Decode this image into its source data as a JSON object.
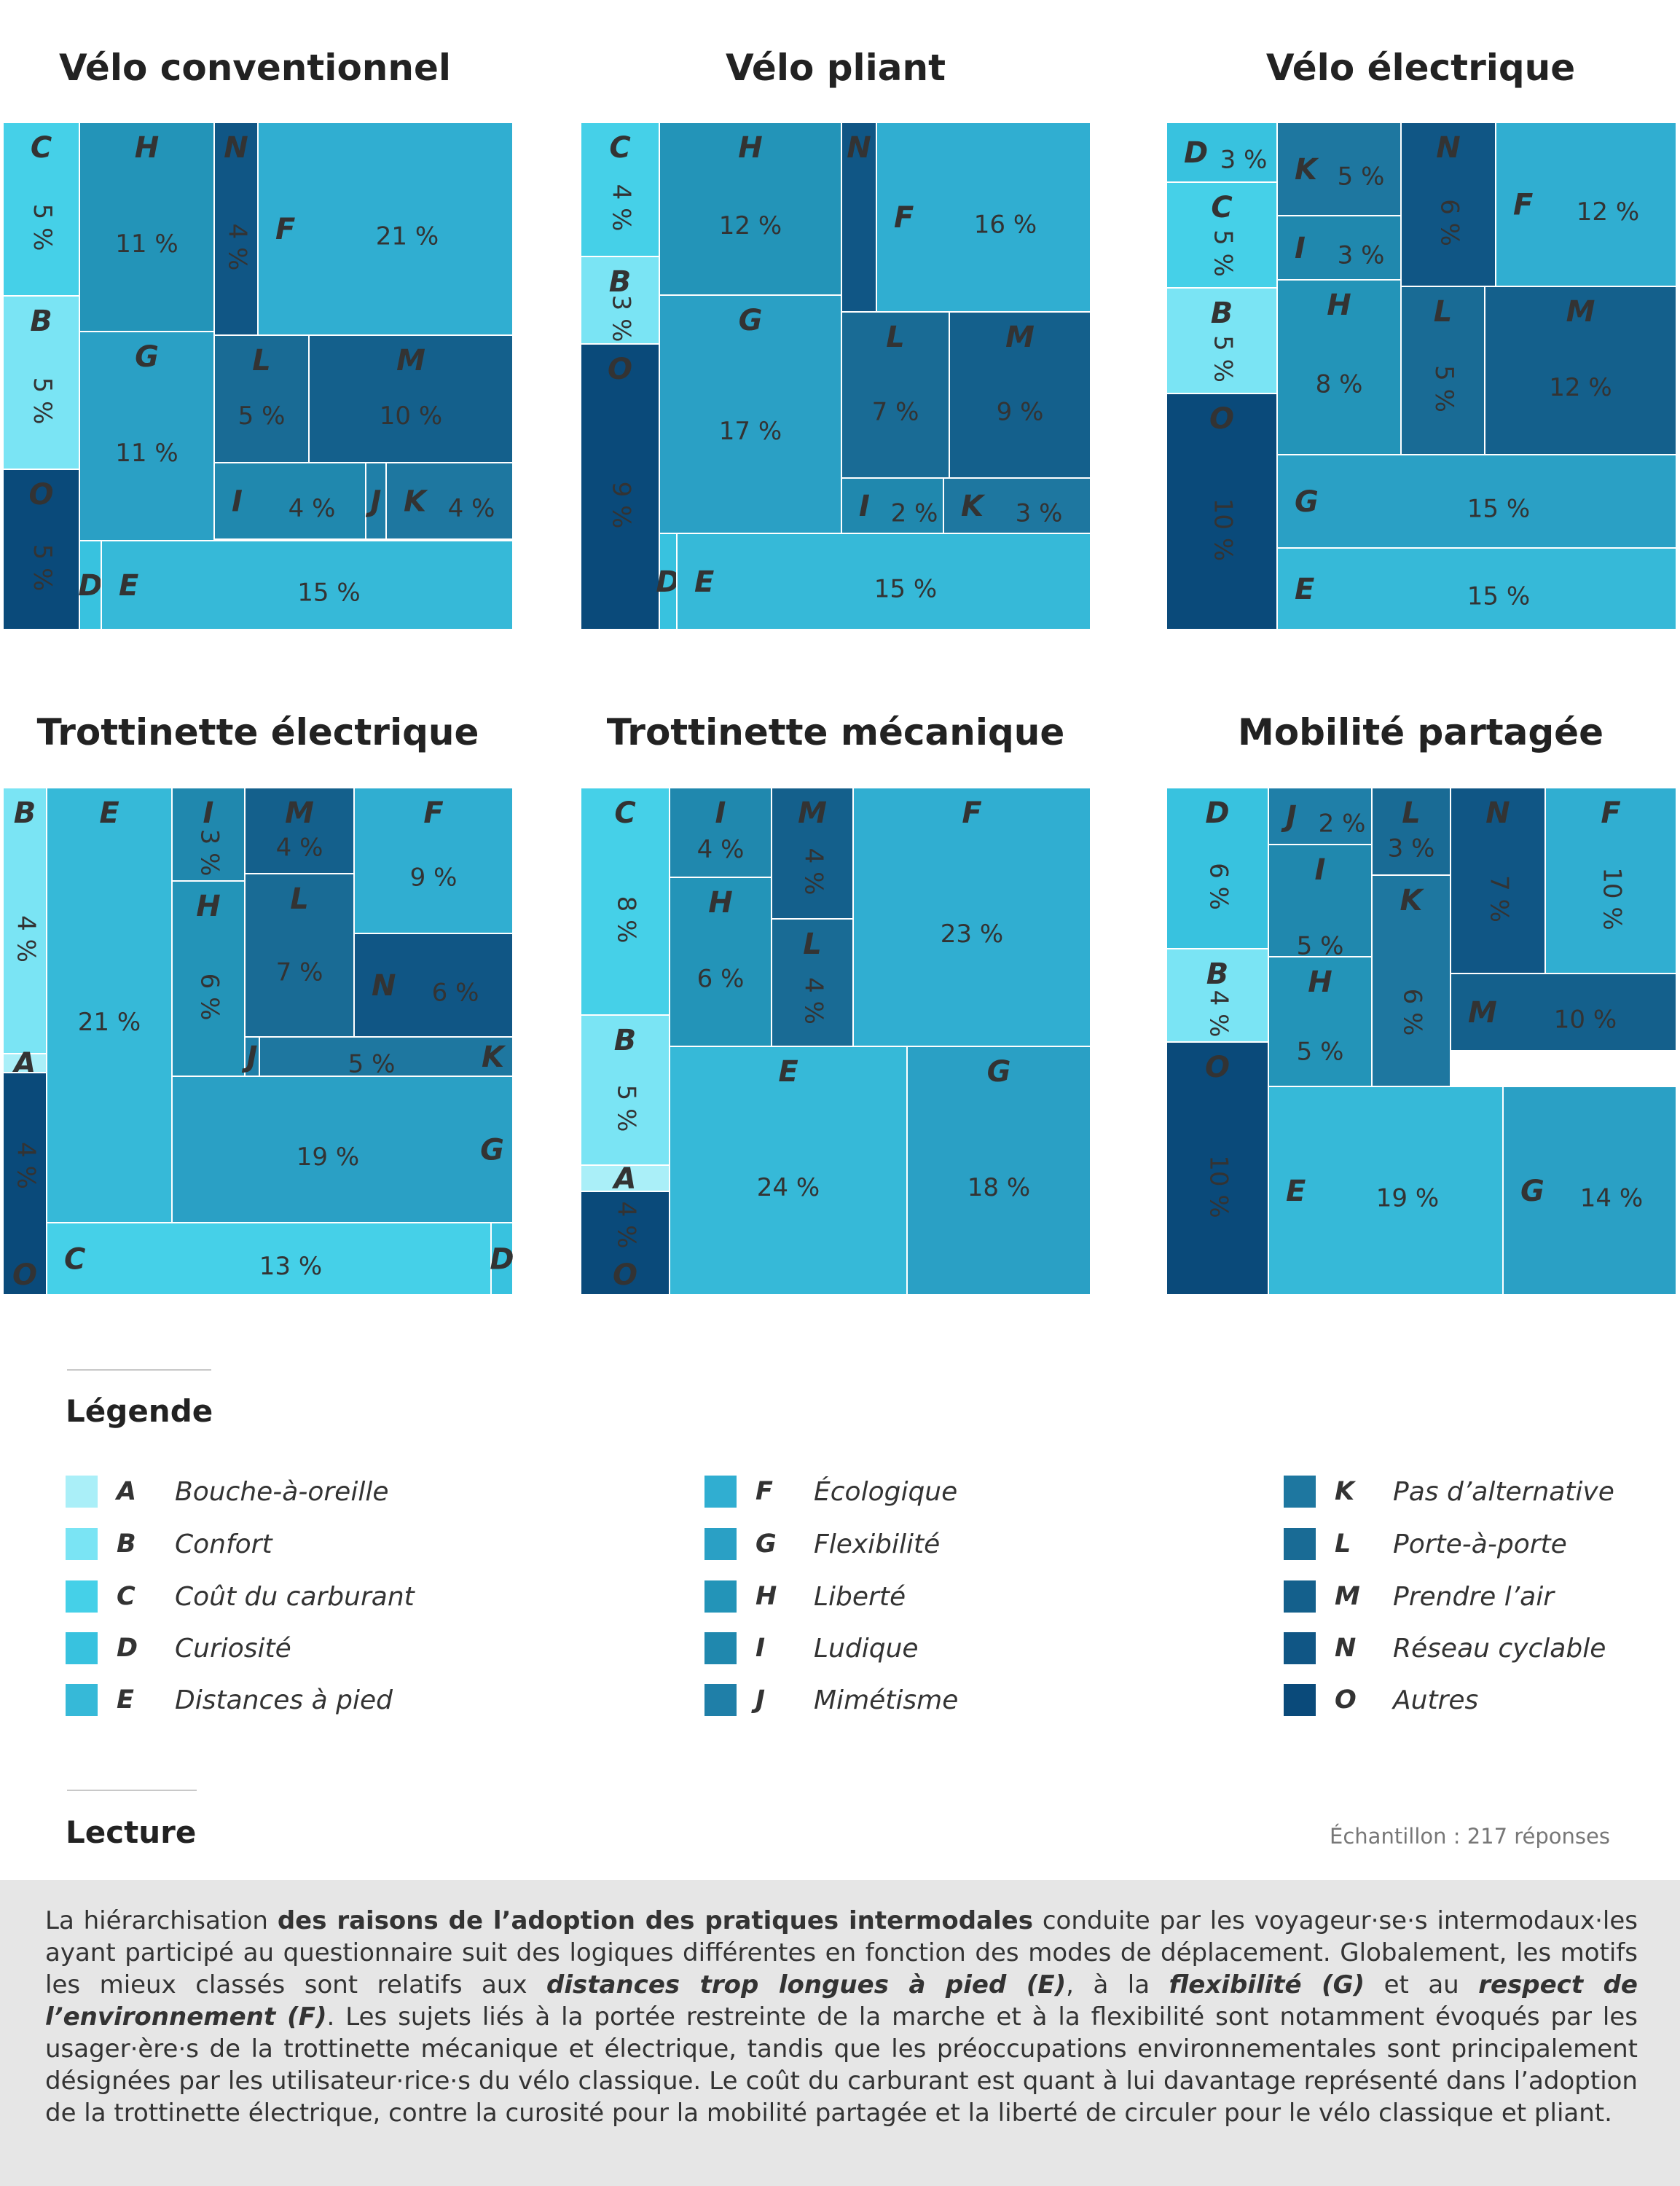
{
  "legend_title": "Légende",
  "reading_title": "Lecture",
  "sample_text": "Échantillon : 217 réponses",
  "colors": {
    "A": "#aaeff8",
    "B": "#7ae4f4",
    "C": "#45d0e8",
    "D": "#38c2df",
    "E": "#36b9d8",
    "F": "#30aed1",
    "G": "#2aa0c5",
    "H": "#2394b8",
    "I": "#2088ae",
    "J": "#1f7fa8",
    "K": "#1e77a0",
    "L": "#196b95",
    "M": "#14608c",
    "N": "#105685",
    "O": "#0a4a7a"
  },
  "legend": [
    {
      "letter": "A",
      "label": "Bouche-à-oreille"
    },
    {
      "letter": "B",
      "label": "Confort"
    },
    {
      "letter": "C",
      "label": "Coût du carburant"
    },
    {
      "letter": "D",
      "label": "Curiosité"
    },
    {
      "letter": "E",
      "label": "Distances à pied"
    },
    {
      "letter": "F",
      "label": "Écologique"
    },
    {
      "letter": "G",
      "label": "Flexibilité"
    },
    {
      "letter": "H",
      "label": "Liberté"
    },
    {
      "letter": "I",
      "label": "Ludique"
    },
    {
      "letter": "J",
      "label": "Mimétisme"
    },
    {
      "letter": "K",
      "label": "Pas d’alternative"
    },
    {
      "letter": "L",
      "label": "Porte-à-porte"
    },
    {
      "letter": "M",
      "label": "Prendre l’air"
    },
    {
      "letter": "N",
      "label": "Réseau cyclable"
    },
    {
      "letter": "O",
      "label": "Autres"
    }
  ],
  "reading": {
    "t1": "La hiérarchisation ",
    "b1": "des raisons de l’adoption des pratiques intermodales",
    "t2": " conduite par les voyageur·se·s intermodaux·les ayant participé au questionnaire suit des logiques différentes en fonction des modes de déplacement. Globalement, les motifs les mieux classés sont relatifs aux ",
    "b2": "distances trop longues à pied (E)",
    "t3": ", à la ",
    "b3": "flexibilité (G)",
    "t4": " et au ",
    "b4": "respect de l’environnement (F)",
    "t5": ". Les sujets liés à la portée restreinte de la marche et à la flexibilité sont notamment évoqués par les usager·ère·s de la trottinette mécanique et électrique, tandis que les préoccupations environnementales sont principalement désignées par les utilisateur·rice·s du vélo classique. Le coût du carburant est quant à lui davantage représenté dans l’adoption de la trottinette électrique, contre la curosité pour la mobilité partagée et la liberté de circuler pour le vélo classique et pliant."
  },
  "chart_data": [
    {
      "type": "treemap",
      "title": "Vélo conventionnel",
      "values": [
        {
          "letter": "C",
          "value": 5,
          "label": "5 %"
        },
        {
          "letter": "B",
          "value": 5,
          "label": "5 %"
        },
        {
          "letter": "O",
          "value": 5,
          "label": "5 %"
        },
        {
          "letter": "H",
          "value": 11,
          "label": "11 %"
        },
        {
          "letter": "G",
          "value": 11,
          "label": "11 %"
        },
        {
          "letter": "N",
          "value": 4,
          "label": "4 %"
        },
        {
          "letter": "F",
          "value": 21,
          "label": "21 %"
        },
        {
          "letter": "L",
          "value": 5,
          "label": "5 %"
        },
        {
          "letter": "M",
          "value": 10,
          "label": "10 %"
        },
        {
          "letter": "I",
          "value": 4,
          "label": "4 %"
        },
        {
          "letter": "J",
          "value": 1,
          "label": ""
        },
        {
          "letter": "K",
          "value": 4,
          "label": "4 %"
        },
        {
          "letter": "D",
          "value": 1,
          "label": ""
        },
        {
          "letter": "E",
          "value": 15,
          "label": "15 %"
        }
      ]
    },
    {
      "type": "treemap",
      "title": "Vélo pliant",
      "values": [
        {
          "letter": "C",
          "value": 4,
          "label": "4 %"
        },
        {
          "letter": "B",
          "value": 3,
          "label": "3 %"
        },
        {
          "letter": "O",
          "value": 9,
          "label": "9 %"
        },
        {
          "letter": "H",
          "value": 12,
          "label": "12 %"
        },
        {
          "letter": "N",
          "value": 2,
          "label": ""
        },
        {
          "letter": "F",
          "value": 16,
          "label": "16 %"
        },
        {
          "letter": "G",
          "value": 17,
          "label": "17 %"
        },
        {
          "letter": "L",
          "value": 7,
          "label": "7 %"
        },
        {
          "letter": "M",
          "value": 9,
          "label": "9 %"
        },
        {
          "letter": "I",
          "value": 2,
          "label": "2 %"
        },
        {
          "letter": "K",
          "value": 3,
          "label": "3 %"
        },
        {
          "letter": "D",
          "value": 1,
          "label": ""
        },
        {
          "letter": "E",
          "value": 15,
          "label": "15 %"
        }
      ]
    },
    {
      "type": "treemap",
      "title": "Vélo électrique",
      "values": [
        {
          "letter": "D",
          "value": 3,
          "label": "3 %"
        },
        {
          "letter": "C",
          "value": 5,
          "label": "5 %"
        },
        {
          "letter": "B",
          "value": 5,
          "label": "5 %"
        },
        {
          "letter": "O",
          "value": 10,
          "label": "10 %"
        },
        {
          "letter": "K",
          "value": 5,
          "label": "5 %"
        },
        {
          "letter": "I",
          "value": 3,
          "label": "3 %"
        },
        {
          "letter": "H",
          "value": 8,
          "label": "8 %"
        },
        {
          "letter": "N",
          "value": 6,
          "label": "6 %"
        },
        {
          "letter": "F",
          "value": 12,
          "label": "12 %"
        },
        {
          "letter": "L",
          "value": 5,
          "label": "5 %"
        },
        {
          "letter": "M",
          "value": 12,
          "label": "12 %"
        },
        {
          "letter": "G",
          "value": 15,
          "label": "15 %"
        },
        {
          "letter": "E",
          "value": 15,
          "label": "15 %"
        }
      ]
    },
    {
      "type": "treemap",
      "title": "Trottinette électrique",
      "values": [
        {
          "letter": "B",
          "value": 4,
          "label": "4 %"
        },
        {
          "letter": "A",
          "value": 1,
          "label": ""
        },
        {
          "letter": "O",
          "value": 4,
          "label": "4 %"
        },
        {
          "letter": "E",
          "value": 21,
          "label": "21 %"
        },
        {
          "letter": "I",
          "value": 3,
          "label": "3 %"
        },
        {
          "letter": "M",
          "value": 4,
          "label": "4 %"
        },
        {
          "letter": "F",
          "value": 9,
          "label": "9 %"
        },
        {
          "letter": "H",
          "value": 6,
          "label": "6 %"
        },
        {
          "letter": "L",
          "value": 7,
          "label": "7 %"
        },
        {
          "letter": "N",
          "value": 6,
          "label": "6 %"
        },
        {
          "letter": "J",
          "value": 1,
          "label": ""
        },
        {
          "letter": "K",
          "value": 5,
          "label": "5 %"
        },
        {
          "letter": "G",
          "value": 19,
          "label": "19 %"
        },
        {
          "letter": "C",
          "value": 13,
          "label": "13 %"
        },
        {
          "letter": "D",
          "value": 1,
          "label": ""
        }
      ]
    },
    {
      "type": "treemap",
      "title": "Trottinette mécanique",
      "values": [
        {
          "letter": "C",
          "value": 8,
          "label": "8 %"
        },
        {
          "letter": "B",
          "value": 5,
          "label": "5 %"
        },
        {
          "letter": "A",
          "value": 1,
          "label": ""
        },
        {
          "letter": "O",
          "value": 4,
          "label": "4 %"
        },
        {
          "letter": "I",
          "value": 4,
          "label": "4 %"
        },
        {
          "letter": "M",
          "value": 4,
          "label": "4 %"
        },
        {
          "letter": "H",
          "value": 6,
          "label": "6 %"
        },
        {
          "letter": "L",
          "value": 4,
          "label": "4 %"
        },
        {
          "letter": "F",
          "value": 23,
          "label": "23 %"
        },
        {
          "letter": "E",
          "value": 24,
          "label": "24 %"
        },
        {
          "letter": "G",
          "value": 18,
          "label": "18 %"
        }
      ]
    },
    {
      "type": "treemap",
      "title": "Mobilité partagée",
      "values": [
        {
          "letter": "D",
          "value": 6,
          "label": "6 %"
        },
        {
          "letter": "B",
          "value": 4,
          "label": "4 %"
        },
        {
          "letter": "O",
          "value": 10,
          "label": "10 %"
        },
        {
          "letter": "J",
          "value": 2,
          "label": "2 %"
        },
        {
          "letter": "I",
          "value": 5,
          "label": "5 %"
        },
        {
          "letter": "H",
          "value": 5,
          "label": "5 %"
        },
        {
          "letter": "L",
          "value": 3,
          "label": "3 %"
        },
        {
          "letter": "K",
          "value": 6,
          "label": "6 %"
        },
        {
          "letter": "N",
          "value": 7,
          "label": "7 %"
        },
        {
          "letter": "F",
          "value": 10,
          "label": "10 %"
        },
        {
          "letter": "M",
          "value": 10,
          "label": "10 %"
        },
        {
          "letter": "E",
          "value": 19,
          "label": "19 %"
        },
        {
          "letter": "G",
          "value": 14,
          "label": "14 %"
        }
      ]
    }
  ]
}
